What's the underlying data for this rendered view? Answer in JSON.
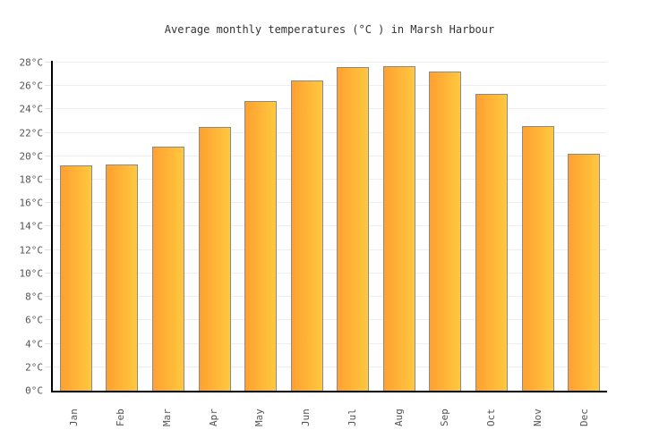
{
  "title": "Average monthly temperatures (°C ) in Marsh Harbour",
  "chart_data": {
    "type": "bar",
    "title": "Average monthly temperatures (°C ) in Marsh Harbour",
    "categories": [
      "Jan",
      "Feb",
      "Mar",
      "Apr",
      "May",
      "Jun",
      "Jul",
      "Aug",
      "Sep",
      "Oct",
      "Nov",
      "Dec"
    ],
    "values": [
      19.2,
      19.3,
      20.8,
      22.5,
      24.7,
      26.5,
      27.6,
      27.7,
      27.2,
      25.3,
      22.6,
      20.2
    ],
    "xlabel": "",
    "ylabel": "",
    "ylim": [
      0,
      28.15
    ],
    "ytick_min": 0,
    "ytick_max": 28,
    "ytick_step": 2,
    "ytick_suffix": "°C",
    "grid": true,
    "legend": false
  },
  "colors": {
    "bar_gradient_start": "#ffa030",
    "bar_gradient_end": "#ffc840",
    "bar_border": "#8a8a8a",
    "gridline": "#eeeeee",
    "axis": "#000000",
    "tick_label": "#555555",
    "title_color": "#333333",
    "background": "#ffffff"
  }
}
